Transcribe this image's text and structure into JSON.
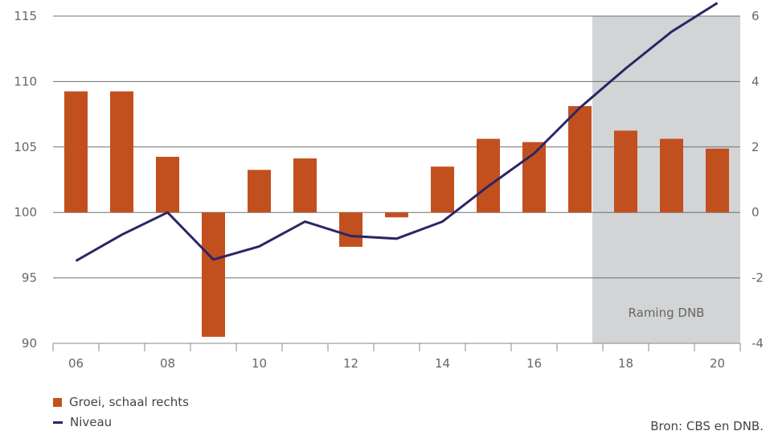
{
  "chart_data": {
    "type": "bar+line",
    "x": [
      "2006",
      "2007",
      "2008",
      "2009",
      "2010",
      "2011",
      "2012",
      "2013",
      "2014",
      "2015",
      "2016",
      "2017",
      "2018",
      "2019",
      "2020"
    ],
    "x_tick_labels": [
      "06",
      "08",
      "10",
      "12",
      "14",
      "16",
      "18",
      "20"
    ],
    "series": [
      {
        "name": "Groei, schaal rechts",
        "type": "bar",
        "axis": "right",
        "values": [
          3.7,
          3.7,
          1.7,
          -3.8,
          1.3,
          1.65,
          -1.05,
          -0.15,
          1.4,
          2.25,
          2.15,
          3.25,
          2.5,
          2.25,
          1.95
        ]
      },
      {
        "name": "Niveau",
        "type": "line",
        "axis": "left",
        "values": [
          96.3,
          98.3,
          100.0,
          96.4,
          97.4,
          99.3,
          98.2,
          98.0,
          99.3,
          102.0,
          104.5,
          108.0,
          111.0,
          113.8,
          116.0
        ]
      }
    ],
    "left_axis": {
      "ylim": [
        90,
        115
      ],
      "ticks": [
        "90",
        "95",
        "100",
        "105",
        "110",
        "115"
      ]
    },
    "right_axis": {
      "ylim": [
        -4,
        6
      ],
      "ticks": [
        "-4",
        "-2",
        "0",
        "2",
        "4",
        "6"
      ]
    },
    "shaded_region": {
      "from": "2018",
      "to": "2020",
      "label": "Raming DNB"
    },
    "grid": true,
    "legend_position": "bottom-left"
  },
  "colors": {
    "bar": "#c2501e",
    "line": "#2c2566",
    "shade": "#d3d4d6",
    "grid": "#707070"
  },
  "legend": {
    "bar_label": "Groei, schaal rechts",
    "line_label": "Niveau"
  },
  "source": "Bron: CBS en DNB."
}
